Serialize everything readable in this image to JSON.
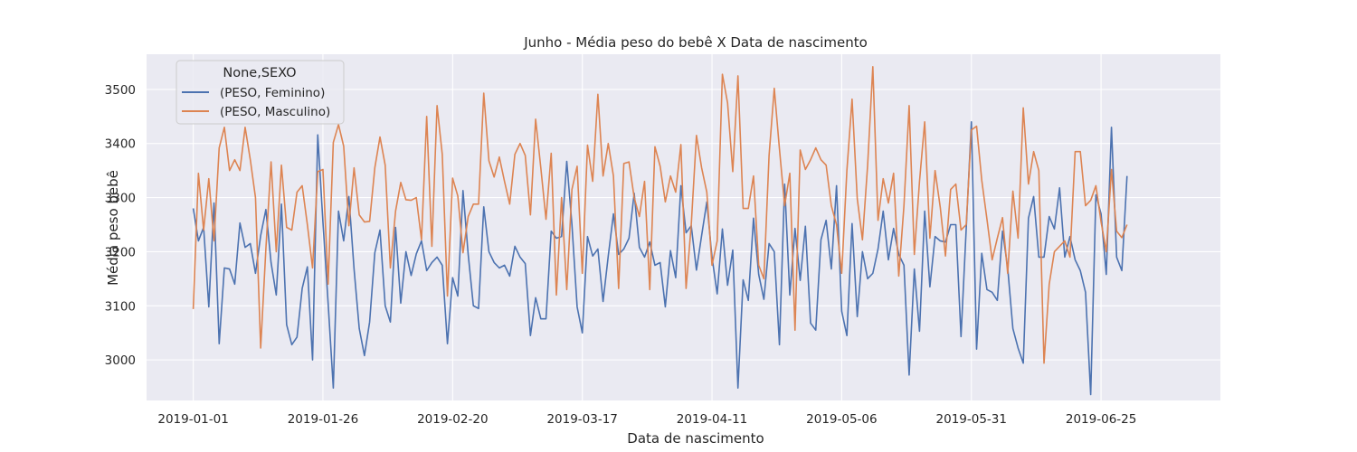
{
  "chart_data": {
    "type": "line",
    "title": "Junho - Média peso do bebê X Data de nascimento",
    "xlabel": "Data de nascimento",
    "ylabel": "Média peso bebê",
    "x_start": "2019-01-01",
    "x_tick_labels": [
      "2019-01-01",
      "2019-01-26",
      "2019-02-20",
      "2019-03-17",
      "2019-04-11",
      "2019-05-06",
      "2019-05-31",
      "2019-06-25"
    ],
    "y_tick_labels": [
      "3000",
      "3100",
      "3200",
      "3300",
      "3400",
      "3500"
    ],
    "xlim": [
      "2018-12-23",
      "2019-07-18"
    ],
    "ylim": [
      2925,
      3565
    ],
    "grid": true,
    "legend": {
      "title": "None,SEXO",
      "placement": "top-left"
    },
    "colors": {
      "background": "#eaeaf2",
      "grid": "#ffffff",
      "Feminino": "#4c72b0",
      "Masculino": "#dd8452"
    },
    "series": [
      {
        "name": "(PESO, Feminino)",
        "color": "#4c72b0",
        "values": [
          3280,
          3220,
          3245,
          3098,
          3290,
          3030,
          3170,
          3168,
          3140,
          3253,
          3208,
          3215,
          3160,
          3230,
          3278,
          3180,
          3120,
          3288,
          3065,
          3028,
          3042,
          3132,
          3172,
          3000,
          3416,
          3255,
          3105,
          2948,
          3275,
          3220,
          3302,
          3168,
          3058,
          3008,
          3070,
          3198,
          3240,
          3100,
          3070,
          3245,
          3105,
          3200,
          3156,
          3196,
          3220,
          3165,
          3180,
          3190,
          3175,
          3030,
          3152,
          3118,
          3313,
          3195,
          3100,
          3095,
          3283,
          3200,
          3180,
          3170,
          3175,
          3155,
          3210,
          3190,
          3178,
          3045,
          3115,
          3076,
          3076,
          3238,
          3225,
          3228,
          3367,
          3250,
          3098,
          3050,
          3228,
          3192,
          3205,
          3108,
          3192,
          3270,
          3195,
          3205,
          3225,
          3308,
          3208,
          3190,
          3218,
          3175,
          3180,
          3098,
          3202,
          3152,
          3322,
          3235,
          3248,
          3166,
          3230,
          3292,
          3190,
          3122,
          3242,
          3138,
          3203,
          2948,
          3148,
          3110,
          3262,
          3158,
          3112,
          3215,
          3200,
          3028,
          3325,
          3120,
          3243,
          3147,
          3247,
          3068,
          3055,
          3222,
          3258,
          3168,
          3322,
          3090,
          3045,
          3252,
          3080,
          3200,
          3150,
          3160,
          3205,
          3275,
          3185,
          3243,
          3195,
          3175,
          2972,
          3168,
          3053,
          3275,
          3135,
          3228,
          3220,
          3218,
          3250,
          3250,
          3043,
          3242,
          3440,
          3020,
          3197,
          3130,
          3125,
          3110,
          3238,
          3170,
          3058,
          3022,
          2994,
          3262,
          3302,
          3190,
          3190,
          3265,
          3242,
          3318,
          3190,
          3228,
          3185,
          3165,
          3125,
          2936,
          3305,
          3270,
          3158,
          3430,
          3190,
          3165,
          3340
        ]
      },
      {
        "name": "(PESO, Masculino)",
        "color": "#dd8452",
        "values": [
          3094,
          3345,
          3240,
          3335,
          3220,
          3392,
          3430,
          3350,
          3370,
          3350,
          3430,
          3370,
          3300,
          3022,
          3205,
          3366,
          3200,
          3360,
          3245,
          3240,
          3310,
          3322,
          3250,
          3170,
          3348,
          3352,
          3140,
          3402,
          3435,
          3395,
          3248,
          3355,
          3268,
          3255,
          3256,
          3355,
          3412,
          3360,
          3170,
          3275,
          3328,
          3296,
          3295,
          3300,
          3222,
          3450,
          3210,
          3470,
          3380,
          3118,
          3336,
          3303,
          3198,
          3265,
          3288,
          3288,
          3493,
          3368,
          3338,
          3375,
          3330,
          3288,
          3380,
          3400,
          3378,
          3268,
          3445,
          3355,
          3260,
          3382,
          3120,
          3300,
          3130,
          3315,
          3358,
          3160,
          3397,
          3330,
          3491,
          3340,
          3400,
          3340,
          3132,
          3363,
          3366,
          3300,
          3265,
          3330,
          3130,
          3394,
          3358,
          3292,
          3340,
          3310,
          3398,
          3132,
          3250,
          3415,
          3355,
          3310,
          3175,
          3220,
          3528,
          3475,
          3348,
          3525,
          3280,
          3280,
          3340,
          3175,
          3150,
          3378,
          3502,
          3390,
          3285,
          3345,
          3055,
          3388,
          3352,
          3370,
          3392,
          3370,
          3360,
          3285,
          3250,
          3160,
          3350,
          3482,
          3298,
          3222,
          3360,
          3542,
          3258,
          3335,
          3290,
          3345,
          3155,
          3285,
          3470,
          3195,
          3330,
          3440,
          3225,
          3350,
          3282,
          3192,
          3315,
          3325,
          3240,
          3250,
          3425,
          3432,
          3332,
          3260,
          3185,
          3225,
          3263,
          3160,
          3312,
          3225,
          3466,
          3325,
          3385,
          3350,
          2994,
          3140,
          3200,
          3210,
          3220,
          3190,
          3385,
          3385,
          3285,
          3295,
          3322,
          3255,
          3200,
          3352,
          3238,
          3226,
          3250
        ]
      }
    ]
  }
}
